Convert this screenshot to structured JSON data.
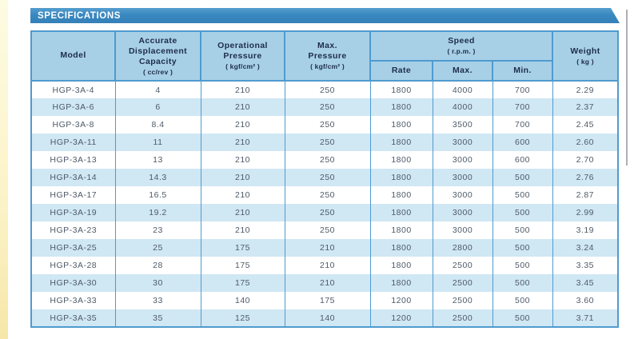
{
  "banner": {
    "title": "SPECIFICATIONS"
  },
  "colors": {
    "banner_blue": "#3a88c0",
    "header_bg": "#a7d0e7",
    "row_alt_blue": "#d0e7f4",
    "border_blue": "#4f9bce",
    "header_text": "#1e2c49",
    "data_text": "#4e5a68",
    "edge_strip_yellow": "#fbf3c8"
  },
  "table": {
    "headers": {
      "model": "Model",
      "capacity_label": "Accurate\nDisplacement\nCapacity",
      "capacity_unit": "( cc/rev )",
      "op_pressure_label": "Operational\nPressure",
      "op_pressure_unit": "( kgf/cm² )",
      "max_pressure_label": "Max.\nPressure",
      "max_pressure_unit": "( kgf/cm² )",
      "speed_label": "Speed",
      "speed_unit": "( r.p.m. )",
      "speed_sub": [
        "Rate",
        "Max.",
        "Min."
      ],
      "weight_label": "Weight",
      "weight_unit": "( kg )"
    },
    "column_keys": [
      "model",
      "displacement-capacity",
      "operational-pressure",
      "max-pressure",
      "speed-rate",
      "speed-max",
      "speed-min",
      "weight"
    ],
    "rows": [
      [
        "HGP-3A-4",
        "4",
        "210",
        "250",
        "1800",
        "4000",
        "700",
        "2.29"
      ],
      [
        "HGP-3A-6",
        "6",
        "210",
        "250",
        "1800",
        "4000",
        "700",
        "2.37"
      ],
      [
        "HGP-3A-8",
        "8.4",
        "210",
        "250",
        "1800",
        "3500",
        "700",
        "2.45"
      ],
      [
        "HGP-3A-11",
        "11",
        "210",
        "250",
        "1800",
        "3000",
        "600",
        "2.60"
      ],
      [
        "HGP-3A-13",
        "13",
        "210",
        "250",
        "1800",
        "3000",
        "600",
        "2.70"
      ],
      [
        "HGP-3A-14",
        "14.3",
        "210",
        "250",
        "1800",
        "3000",
        "500",
        "2.76"
      ],
      [
        "HGP-3A-17",
        "16.5",
        "210",
        "250",
        "1800",
        "3000",
        "500",
        "2.87"
      ],
      [
        "HGP-3A-19",
        "19.2",
        "210",
        "250",
        "1800",
        "3000",
        "500",
        "2.99"
      ],
      [
        "HGP-3A-23",
        "23",
        "210",
        "250",
        "1800",
        "3000",
        "500",
        "3.19"
      ],
      [
        "HGP-3A-25",
        "25",
        "175",
        "210",
        "1800",
        "2800",
        "500",
        "3.24"
      ],
      [
        "HGP-3A-28",
        "28",
        "175",
        "210",
        "1800",
        "2500",
        "500",
        "3.35"
      ],
      [
        "HGP-3A-30",
        "30",
        "175",
        "210",
        "1800",
        "2500",
        "500",
        "3.45"
      ],
      [
        "HGP-3A-33",
        "33",
        "140",
        "175",
        "1200",
        "2500",
        "500",
        "3.60"
      ],
      [
        "HGP-3A-35",
        "35",
        "125",
        "140",
        "1200",
        "2500",
        "500",
        "3.71"
      ]
    ]
  }
}
